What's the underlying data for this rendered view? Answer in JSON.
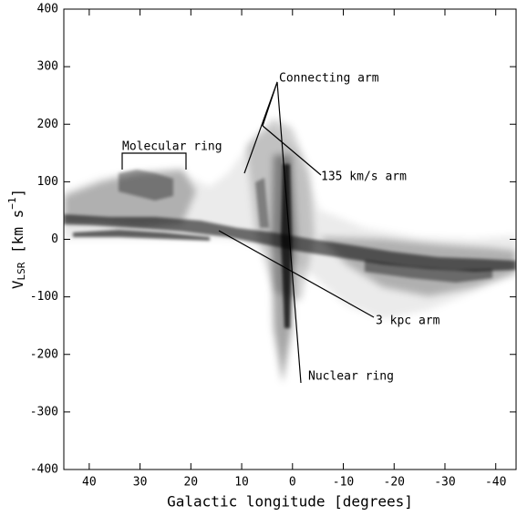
{
  "chart_data": {
    "type": "lv-diagram",
    "xlabel": "Galactic longitude [degrees]",
    "ylabel": [
      "V",
      "LSR",
      " [km s",
      "−1",
      "]"
    ],
    "xlim": [
      45,
      -44
    ],
    "ylim": [
      -400,
      400
    ],
    "xticks": [
      40,
      30,
      20,
      10,
      0,
      -10,
      -20,
      -30,
      -40
    ],
    "yticks": [
      -400,
      -300,
      -200,
      -100,
      0,
      100,
      200,
      300,
      400
    ],
    "annotations": [
      "Connecting arm",
      "Molecular ring",
      "135 km/s arm",
      "3 kpc arm",
      "Nuclear ring"
    ]
  }
}
